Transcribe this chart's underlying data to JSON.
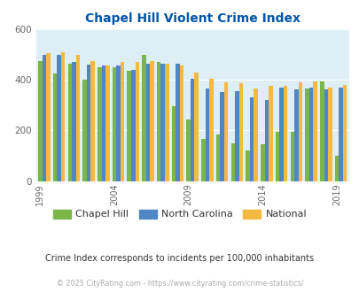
{
  "title": "Chapel Hill Violent Crime Index",
  "title_color": "#0055aa",
  "years": [
    1999,
    2000,
    2001,
    2002,
    2003,
    2004,
    2005,
    2006,
    2007,
    2008,
    2009,
    2010,
    2011,
    2012,
    2013,
    2014,
    2015,
    2016,
    2017,
    2018,
    2019
  ],
  "chapel_hill": [
    475,
    425,
    465,
    400,
    450,
    450,
    435,
    500,
    470,
    295,
    245,
    165,
    185,
    150,
    120,
    145,
    195,
    195,
    365,
    395,
    100
  ],
  "north_carolina": [
    500,
    500,
    470,
    460,
    455,
    455,
    440,
    465,
    465,
    465,
    405,
    365,
    350,
    355,
    332,
    322,
    370,
    362,
    370,
    362,
    370
  ],
  "national": [
    505,
    510,
    500,
    475,
    455,
    470,
    470,
    475,
    465,
    455,
    430,
    405,
    390,
    385,
    365,
    375,
    375,
    390,
    395,
    370,
    380
  ],
  "chapel_hill_color": "#7ab648",
  "north_carolina_color": "#4f86c6",
  "national_color": "#f5b942",
  "bg_color": "#ddeef5",
  "ylim": [
    0,
    600
  ],
  "yticks": [
    0,
    200,
    400,
    600
  ],
  "xlabel_ticks": [
    1999,
    2004,
    2009,
    2014,
    2019
  ],
  "tick_label_color": "#666666",
  "subtitle": "Crime Index corresponds to incidents per 100,000 inhabitants",
  "footnote": "© 2025 CityRating.com - https://www.cityrating.com/crime-statistics/",
  "legend_labels": [
    "Chapel Hill",
    "North Carolina",
    "National"
  ],
  "bar_width": 0.27
}
